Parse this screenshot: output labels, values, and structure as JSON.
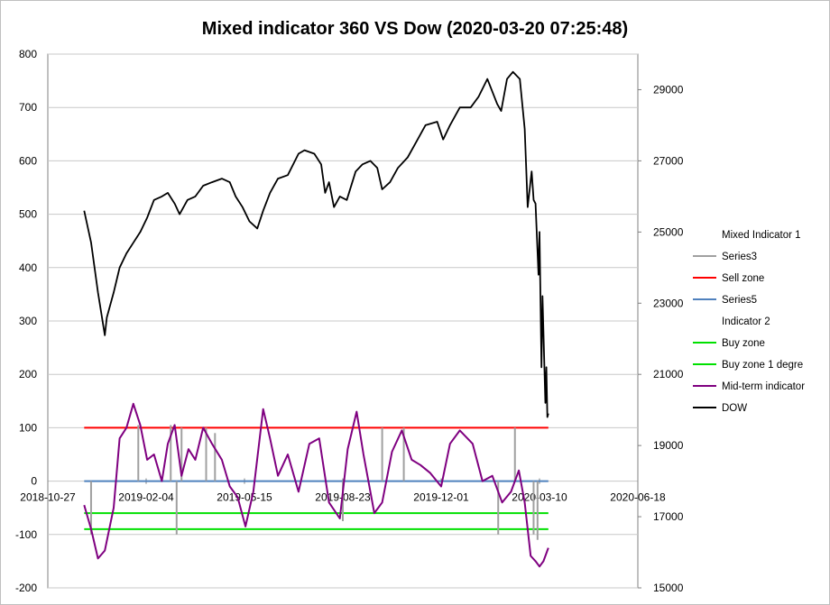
{
  "chart_data": {
    "type": "line",
    "title": "Mixed indicator 360 VS Dow (2020-03-20  07:25:48)",
    "x_ticks": [
      "2018-10-27",
      "2019-02-04",
      "2019-05-15",
      "2019-08-23",
      "2019-12-01",
      "2020-03-10",
      "2020-06-18"
    ],
    "x_range": [
      "2018-10-27",
      "2020-06-18"
    ],
    "y_left_ticks": [
      "-200",
      "-100",
      "0",
      "100",
      "200",
      "300",
      "400",
      "500",
      "600",
      "700",
      "800"
    ],
    "y_left_range": [
      -200,
      800
    ],
    "y_right_ticks": [
      "15000",
      "17000",
      "19000",
      "21000",
      "23000",
      "25000",
      "27000",
      "29000"
    ],
    "y_right_range": [
      15000,
      30000
    ],
    "grid": "horizontal major gridlines on left axis",
    "legend_position": "right",
    "legend": [
      {
        "label": "Mixed Indicator 1",
        "color": null
      },
      {
        "label": "Series3",
        "color": "#a0a0a0"
      },
      {
        "label": "Sell zone",
        "color": "#ff0000"
      },
      {
        "label": "Series5",
        "color": "#4f81bd"
      },
      {
        "label": "Indicator  2",
        "color": null
      },
      {
        "label": "Buy zone",
        "color": "#00e000"
      },
      {
        "label": "Buy zone 1 degre",
        "color": "#00e000"
      },
      {
        "label": "Mid-term indicator",
        "color": "#7f0080"
      },
      {
        "label": "DOW",
        "color": "#000000"
      }
    ],
    "series": [
      {
        "name": "DOW",
        "axis": "right",
        "color": "#000000",
        "x": [
          "2018-12-03",
          "2018-12-10",
          "2018-12-17",
          "2018-12-24",
          "2018-12-26",
          "2019-01-02",
          "2019-01-08",
          "2019-01-15",
          "2019-01-22",
          "2019-01-29",
          "2019-02-05",
          "2019-02-12",
          "2019-02-20",
          "2019-02-26",
          "2019-03-05",
          "2019-03-10",
          "2019-03-18",
          "2019-03-26",
          "2019-04-03",
          "2019-04-12",
          "2019-04-22",
          "2019-04-30",
          "2019-05-06",
          "2019-05-13",
          "2019-05-20",
          "2019-05-28",
          "2019-06-03",
          "2019-06-10",
          "2019-06-18",
          "2019-06-28",
          "2019-07-09",
          "2019-07-15",
          "2019-07-25",
          "2019-08-01",
          "2019-08-05",
          "2019-08-09",
          "2019-08-14",
          "2019-08-20",
          "2019-08-27",
          "2019-09-05",
          "2019-09-12",
          "2019-09-20",
          "2019-09-27",
          "2019-10-02",
          "2019-10-10",
          "2019-10-18",
          "2019-10-28",
          "2019-11-05",
          "2019-11-15",
          "2019-11-27",
          "2019-12-03",
          "2019-12-10",
          "2019-12-20",
          "2019-12-31",
          "2020-01-08",
          "2020-01-17",
          "2020-01-27",
          "2020-01-31",
          "2020-02-06",
          "2020-02-12",
          "2020-02-19",
          "2020-02-24",
          "2020-02-27",
          "2020-03-02",
          "2020-03-04",
          "2020-03-06",
          "2020-03-09",
          "2020-03-10",
          "2020-03-12",
          "2020-03-13",
          "2020-03-16",
          "2020-03-17",
          "2020-03-18",
          "2020-03-19"
        ],
        "values": [
          25600,
          24700,
          23300,
          22100,
          22600,
          23300,
          24000,
          24400,
          24700,
          25000,
          25400,
          25900,
          26000,
          26100,
          25800,
          25500,
          25900,
          26000,
          26300,
          26400,
          26500,
          26400,
          26000,
          25700,
          25300,
          25100,
          25600,
          26100,
          26500,
          26600,
          27200,
          27300,
          27200,
          26900,
          26100,
          26400,
          25700,
          26000,
          25900,
          26700,
          26900,
          27000,
          26800,
          26200,
          26400,
          26800,
          27100,
          27500,
          28000,
          28100,
          27600,
          28000,
          28500,
          28500,
          28800,
          29300,
          28600,
          28400,
          29300,
          29500,
          29300,
          27900,
          25700,
          26700,
          25900,
          25800,
          23800,
          25000,
          21200,
          23200,
          20200,
          21200,
          19800,
          19900
        ]
      },
      {
        "name": "Mid-term indicator",
        "axis": "left",
        "color": "#7f0080",
        "x": [
          "2018-12-03",
          "2018-12-10",
          "2018-12-17",
          "2018-12-24",
          "2019-01-02",
          "2019-01-08",
          "2019-01-15",
          "2019-01-22",
          "2019-01-29",
          "2019-02-05",
          "2019-02-12",
          "2019-02-20",
          "2019-02-26",
          "2019-03-05",
          "2019-03-12",
          "2019-03-19",
          "2019-03-26",
          "2019-04-03",
          "2019-04-12",
          "2019-04-22",
          "2019-04-30",
          "2019-05-08",
          "2019-05-16",
          "2019-05-24",
          "2019-06-03",
          "2019-06-10",
          "2019-06-18",
          "2019-06-28",
          "2019-07-09",
          "2019-07-20",
          "2019-07-30",
          "2019-08-09",
          "2019-08-20",
          "2019-08-28",
          "2019-09-06",
          "2019-09-13",
          "2019-09-24",
          "2019-10-02",
          "2019-10-12",
          "2019-10-22",
          "2019-11-01",
          "2019-11-10",
          "2019-11-20",
          "2019-12-01",
          "2019-12-10",
          "2019-12-20",
          "2020-01-02",
          "2020-01-12",
          "2020-01-22",
          "2020-02-01",
          "2020-02-10",
          "2020-02-18",
          "2020-02-24",
          "2020-03-01",
          "2020-03-06",
          "2020-03-10",
          "2020-03-14",
          "2020-03-19"
        ],
        "values": [
          -45,
          -90,
          -145,
          -130,
          -50,
          80,
          100,
          145,
          105,
          40,
          50,
          0,
          70,
          105,
          10,
          60,
          40,
          100,
          70,
          40,
          -10,
          -30,
          -85,
          -20,
          135,
          80,
          10,
          50,
          -20,
          70,
          80,
          -40,
          -70,
          60,
          130,
          50,
          -60,
          -40,
          55,
          95,
          40,
          30,
          15,
          -10,
          70,
          95,
          70,
          0,
          10,
          -40,
          -20,
          20,
          -40,
          -140,
          -150,
          -160,
          -150,
          -125
        ]
      },
      {
        "name": "Series3",
        "axis": "left",
        "color": "#a0a0a0",
        "x": [
          "2018-12-10",
          "2019-01-27",
          "2019-03-01",
          "2019-03-07",
          "2019-03-12",
          "2019-04-06",
          "2019-04-15",
          "2019-08-23",
          "2019-10-02",
          "2019-10-24",
          "2020-01-28",
          "2020-02-14",
          "2020-03-04",
          "2020-03-08"
        ],
        "values": [
          -100,
          105,
          105,
          -100,
          100,
          100,
          90,
          -75,
          100,
          100,
          -100,
          100,
          -100,
          -110
        ]
      },
      {
        "name": "Sell zone",
        "axis": "left",
        "color": "#ff0000",
        "values": [
          100,
          100
        ]
      },
      {
        "name": "Series5",
        "axis": "left",
        "color": "#4f81bd",
        "values": [
          0,
          0
        ]
      },
      {
        "name": "Buy zone",
        "axis": "left",
        "color": "#00e000",
        "values": [
          -60,
          -60
        ]
      },
      {
        "name": "Buy zone 1 degre",
        "axis": "left",
        "color": "#00e000",
        "values": [
          -90,
          -90
        ]
      }
    ],
    "zone_x": [
      "2018-12-03",
      "2020-03-19"
    ]
  }
}
